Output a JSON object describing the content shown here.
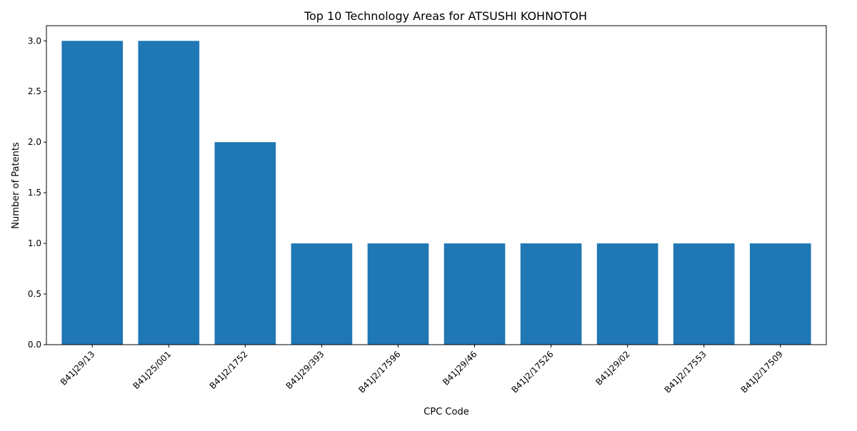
{
  "chart_data": {
    "type": "bar",
    "title": "Top 10 Technology Areas for ATSUSHI KOHNOTOH",
    "xlabel": "CPC Code",
    "ylabel": "Number of Patents",
    "categories": [
      "B41J29/13",
      "B41J25/001",
      "B41J2/1752",
      "B41J29/393",
      "B41J2/17596",
      "B41J29/46",
      "B41J2/17526",
      "B41J29/02",
      "B41J2/17553",
      "B41J2/17509"
    ],
    "values": [
      3,
      3,
      2,
      1,
      1,
      1,
      1,
      1,
      1,
      1
    ],
    "ylim": [
      0,
      3.15
    ],
    "yticks": [
      "0.0",
      "0.5",
      "1.0",
      "1.5",
      "2.0",
      "2.5",
      "3.0"
    ],
    "grid": false,
    "bar_color": "#1f77b4"
  }
}
